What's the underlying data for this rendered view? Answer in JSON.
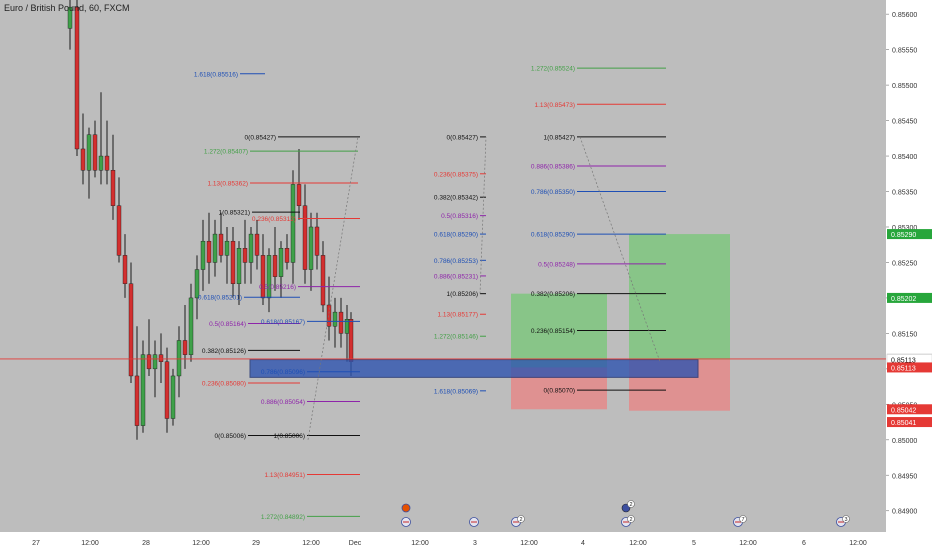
{
  "header": {
    "title": "Euro / British Pound, 60, FXCM"
  },
  "colors": {
    "background": "#bdbdbd",
    "up": "#3fa14a",
    "down": "#d32f2f",
    "wick": "#1a1a1a",
    "current_price_line": "#e53935",
    "zone_blue": "#2f55b0",
    "long_green": "#7fc77f",
    "short_red": "#e58a8a"
  },
  "price_axis": {
    "min": 0.8487,
    "max": 0.8562,
    "ticks": [
      "0.85600",
      "0.85550",
      "0.85500",
      "0.85450",
      "0.85400",
      "0.85350",
      "0.85300",
      "0.85250",
      "0.85200",
      "0.85150",
      "0.85100",
      "0.85050",
      "0.85000",
      "0.84950",
      "0.84900"
    ],
    "badges": [
      {
        "value": 0.8529,
        "text": "0.85290",
        "color": "#27a63b"
      },
      {
        "value": 0.852,
        "text": "0.85202",
        "color": "#27a63b"
      },
      {
        "value": 0.85114,
        "text": "0.85114",
        "color": "#ffffff"
      },
      {
        "value": 0.85113,
        "text": "0.85113",
        "color": "#ffffff"
      },
      {
        "value": 0.85102,
        "text": "0.85113",
        "color": "#e53935"
      },
      {
        "value": 0.85043,
        "text": "0.85042",
        "color": "#e53935"
      },
      {
        "value": 0.85025,
        "text": "0.85041",
        "color": "#e53935"
      }
    ]
  },
  "time_axis": {
    "labels": [
      {
        "t": 36,
        "text": "27"
      },
      {
        "t": 90,
        "text": "12:00"
      },
      {
        "t": 146,
        "text": "28"
      },
      {
        "t": 201,
        "text": "12:00"
      },
      {
        "t": 256,
        "text": "29"
      },
      {
        "t": 311,
        "text": "12:00"
      },
      {
        "t": 355,
        "text": "Dec"
      },
      {
        "t": 420,
        "text": "12:00"
      },
      {
        "t": 475,
        "text": "3"
      },
      {
        "t": 529,
        "text": "12:00"
      },
      {
        "t": 583,
        "text": "4"
      },
      {
        "t": 638,
        "text": "12:00"
      },
      {
        "t": 694,
        "text": "5"
      },
      {
        "t": 748,
        "text": "12:00"
      },
      {
        "t": 804,
        "text": "6"
      },
      {
        "t": 858,
        "text": "12:00"
      }
    ]
  },
  "fib_sets": [
    {
      "levels": [
        {
          "label": "1.618(0.85516)",
          "price": 0.85516,
          "color": "#1e4fb5"
        }
      ]
    },
    {
      "levels": [
        {
          "label": "0(0.85427)",
          "price": 0.85427,
          "color": "#111111"
        },
        {
          "label": "1.272(0.85407)",
          "price": 0.85407,
          "color": "#43a047"
        },
        {
          "label": "1.13(0.85362)",
          "price": 0.85362,
          "color": "#e53935"
        },
        {
          "label": "0.236(0.85312)",
          "price": 0.85312,
          "color": "#e53935"
        },
        {
          "label": "1(0.85321)",
          "price": 0.85321,
          "color": "#111111"
        },
        {
          "label": "0.5(0.85216)",
          "price": 0.85216,
          "color": "#8e24aa"
        },
        {
          "label": "0.618(0.85201)",
          "price": 0.85201,
          "color": "#1e4fb5"
        },
        {
          "label": "0.5(0.85164)",
          "price": 0.85164,
          "color": "#8e24aa"
        },
        {
          "label": "0.618(0.85167)",
          "price": 0.85167,
          "color": "#1e4fb5"
        },
        {
          "label": "0.382(0.85126)",
          "price": 0.85126,
          "color": "#111111"
        },
        {
          "label": "0.236(0.85080)",
          "price": 0.8508,
          "color": "#e53935"
        },
        {
          "label": "0.786(0.85096)",
          "price": 0.85096,
          "color": "#1e4fb5"
        },
        {
          "label": "0.886(0.85054)",
          "price": 0.85054,
          "color": "#8e24aa"
        },
        {
          "label": "0(0.85006)",
          "price": 0.85006,
          "color": "#111111"
        },
        {
          "label": "1(0.85006)",
          "price": 0.85006,
          "color": "#111111"
        },
        {
          "label": "1.13(0.84951)",
          "price": 0.84951,
          "color": "#e53935"
        },
        {
          "label": "1.272(0.84892)",
          "price": 0.84892,
          "color": "#43a047"
        }
      ]
    },
    {
      "levels": [
        {
          "label": "0(0.85427)",
          "price": 0.85427,
          "color": "#111111"
        },
        {
          "label": "0.236(0.85375)",
          "price": 0.85375,
          "color": "#e53935"
        },
        {
          "label": "0.382(0.85342)",
          "price": 0.85342,
          "color": "#111111"
        },
        {
          "label": "0.5(0.85316)",
          "price": 0.85316,
          "color": "#8e24aa"
        },
        {
          "label": "0.618(0.85290)",
          "price": 0.8529,
          "color": "#1e4fb5"
        },
        {
          "label": "0.786(0.85253)",
          "price": 0.85253,
          "color": "#1e4fb5"
        },
        {
          "label": "0.886(0.85231)",
          "price": 0.85231,
          "color": "#8e24aa"
        },
        {
          "label": "1(0.85206)",
          "price": 0.85206,
          "color": "#111111"
        },
        {
          "label": "1.13(0.85177)",
          "price": 0.85177,
          "color": "#e53935"
        },
        {
          "label": "1.272(0.85146)",
          "price": 0.85146,
          "color": "#43a047"
        },
        {
          "label": "1.618(0.85069)",
          "price": 0.85069,
          "color": "#1e4fb5"
        }
      ]
    },
    {
      "levels": [
        {
          "label": "1.272(0.85524)",
          "price": 0.85524,
          "color": "#43a047"
        },
        {
          "label": "1.13(0.85473)",
          "price": 0.85473,
          "color": "#e53935"
        },
        {
          "label": "1(0.85427)",
          "price": 0.85427,
          "color": "#111111"
        },
        {
          "label": "0.886(0.85386)",
          "price": 0.85386,
          "color": "#8e24aa"
        },
        {
          "label": "0.786(0.85350)",
          "price": 0.8535,
          "color": "#1e4fb5"
        },
        {
          "label": "0.618(0.85290)",
          "price": 0.8529,
          "color": "#1e4fb5"
        },
        {
          "label": "0.5(0.85248)",
          "price": 0.85248,
          "color": "#8e24aa"
        },
        {
          "label": "0.382(0.85206)",
          "price": 0.85206,
          "color": "#111111"
        },
        {
          "label": "0.236(0.85154)",
          "price": 0.85154,
          "color": "#111111"
        },
        {
          "label": "0(0.85070)",
          "price": 0.8507,
          "color": "#111111"
        }
      ]
    }
  ],
  "positions": [
    {
      "type": "long",
      "entry": 0.85102,
      "target": 0.85206,
      "stop": 0.85043
    },
    {
      "type": "long",
      "entry": 0.85113,
      "target": 0.8529,
      "stop": 0.85041
    }
  ],
  "zone": {
    "top": 0.85113,
    "bottom": 0.85088
  },
  "current_price": 0.85114,
  "events": [
    {
      "t": 406,
      "count": ""
    },
    {
      "t": 474,
      "count": ""
    },
    {
      "t": 516,
      "count": "2"
    },
    {
      "t": 626,
      "count": "2"
    },
    {
      "t": 738,
      "count": "7"
    },
    {
      "t": 841,
      "count": "3"
    }
  ]
}
